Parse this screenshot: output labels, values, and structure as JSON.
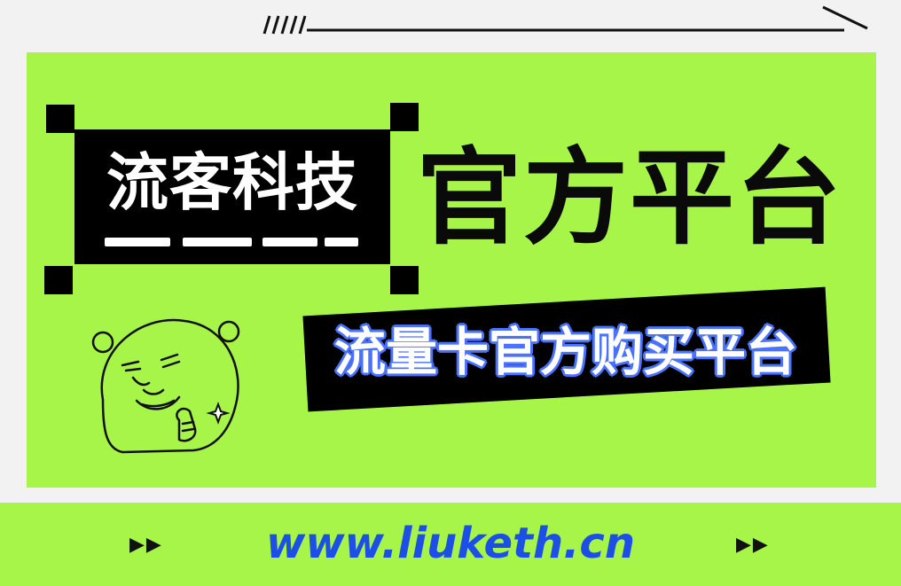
{
  "brand": {
    "name": "流客科技",
    "headline": "官方平台",
    "subtitle": "流量卡官方购买平台"
  },
  "footer": {
    "url": "www.liuketh.cn",
    "arrow_left": "▶▶",
    "arrow_right": "▶▶"
  },
  "colors": {
    "poster_bg": "#a7f549",
    "headline_text": "#0a0a0a",
    "subtitle_outline": "#4a72ff",
    "url_text": "#1b4fe6"
  },
  "icons": [
    "slash-marks-icon",
    "panda-meme-icon",
    "sparkle-icon"
  ]
}
